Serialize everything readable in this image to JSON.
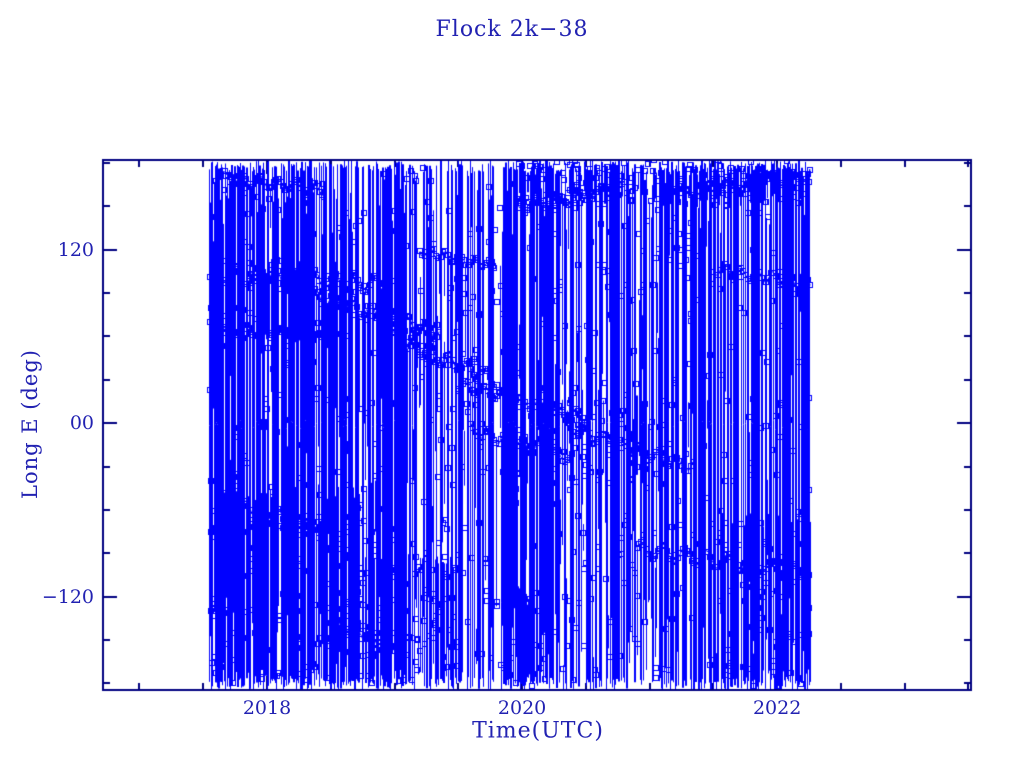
{
  "colors": {
    "background": "#ffffff",
    "data": "#0000ff",
    "axis": "#000080",
    "text": "#2222b2"
  },
  "chart_data": {
    "type": "scatter",
    "title": "Flock 2k−38",
    "xlabel": "Time(UTC)",
    "ylabel": "Long E (deg)",
    "marker": "open-square",
    "marker_size_px": 5,
    "line_color": "#0000ff",
    "grid": false,
    "legend": "none",
    "x_range": [
      2016.714,
      2023.52
    ],
    "y_range": [
      -184.5,
      182
    ],
    "x_ticks": [
      {
        "value": 2018,
        "label": "2018"
      },
      {
        "value": 2020,
        "label": "2020"
      },
      {
        "value": 2022,
        "label": "2022"
      }
    ],
    "y_ticks": [
      {
        "value": 120,
        "label": "120"
      },
      {
        "value": 0,
        "label": "00"
      },
      {
        "value": -120,
        "label": "−120"
      }
    ],
    "x_minor_step": 0.5,
    "y_minor_step": 30,
    "description": "Sub-satellite longitude (deg E) versus time for Flock 2k-38; longitude wraps at ±180° producing dense vertical line segments between plotted square markers. Data span approx 2017.55 to 2022.26.",
    "data_time_span": [
      2017.55,
      2022.26
    ],
    "generator": {
      "seed": 1337,
      "t_span": [
        2017.55,
        2022.26
      ],
      "column_dt": 0.0125,
      "band_dt": 0.009,
      "wrap_top_lon": 182,
      "wrap_bottom_lon": -184,
      "markers_per_column": 1.1,
      "stroke_prob": 0.6,
      "stroke_len_deg": [
        18,
        120
      ],
      "density": [
        [
          2017.55,
          0.88
        ],
        [
          2017.72,
          0.78
        ],
        [
          2018.75,
          0.85
        ],
        [
          2019.1,
          0.45
        ],
        [
          2019.85,
          0.78
        ],
        [
          2020.2,
          0.62
        ],
        [
          2020.55,
          0.55
        ],
        [
          2021.0,
          0.72
        ],
        [
          2021.6,
          0.8
        ],
        [
          2022.08,
          0.93
        ]
      ],
      "blobs": [
        [
          2017.55,
          2018.78,
          -180,
          -42,
          0.75
        ],
        [
          2018.78,
          2019.5,
          -182,
          -90,
          0.7
        ],
        [
          2019.9,
          2020.22,
          -183,
          -110,
          0.55
        ],
        [
          2019.95,
          2022.26,
          150,
          182,
          0.55
        ],
        [
          2021.55,
          2022.26,
          -183,
          -60,
          0.6
        ],
        [
          2020.25,
          2021.1,
          -45,
          20,
          0.4
        ],
        [
          2017.55,
          2018.35,
          52,
          115,
          0.45
        ]
      ],
      "bands": [
        [
          2017.55,
          2018.95,
          104,
          95,
          6,
          9
        ],
        [
          2017.55,
          2018.55,
          66,
          59,
          3,
          7
        ],
        [
          2017.6,
          2018.45,
          171,
          161,
          4,
          6
        ],
        [
          2018.2,
          2019.35,
          92,
          63,
          5,
          8
        ],
        [
          2018.95,
          2019.8,
          60,
          30,
          5,
          6
        ],
        [
          2019.5,
          2020.5,
          27,
          3,
          4,
          7
        ],
        [
          2019.6,
          2020.4,
          -5,
          -25,
          4,
          6
        ],
        [
          2020.35,
          2021.35,
          -3,
          -31,
          4,
          7
        ],
        [
          2020.9,
          2022.26,
          -87,
          -104,
          5,
          8
        ],
        [
          2019.95,
          2020.8,
          149,
          162,
          4,
          5
        ],
        [
          2021.25,
          2022.26,
          159,
          172,
          4,
          6
        ],
        [
          2017.8,
          2018.55,
          -58,
          -73,
          4,
          6
        ],
        [
          2018.55,
          2019.1,
          -139,
          -157,
          4,
          5
        ],
        [
          2021.5,
          2022.26,
          107,
          96,
          4,
          6
        ],
        [
          2019.2,
          2019.78,
          119,
          109,
          3,
          5
        ]
      ]
    }
  }
}
